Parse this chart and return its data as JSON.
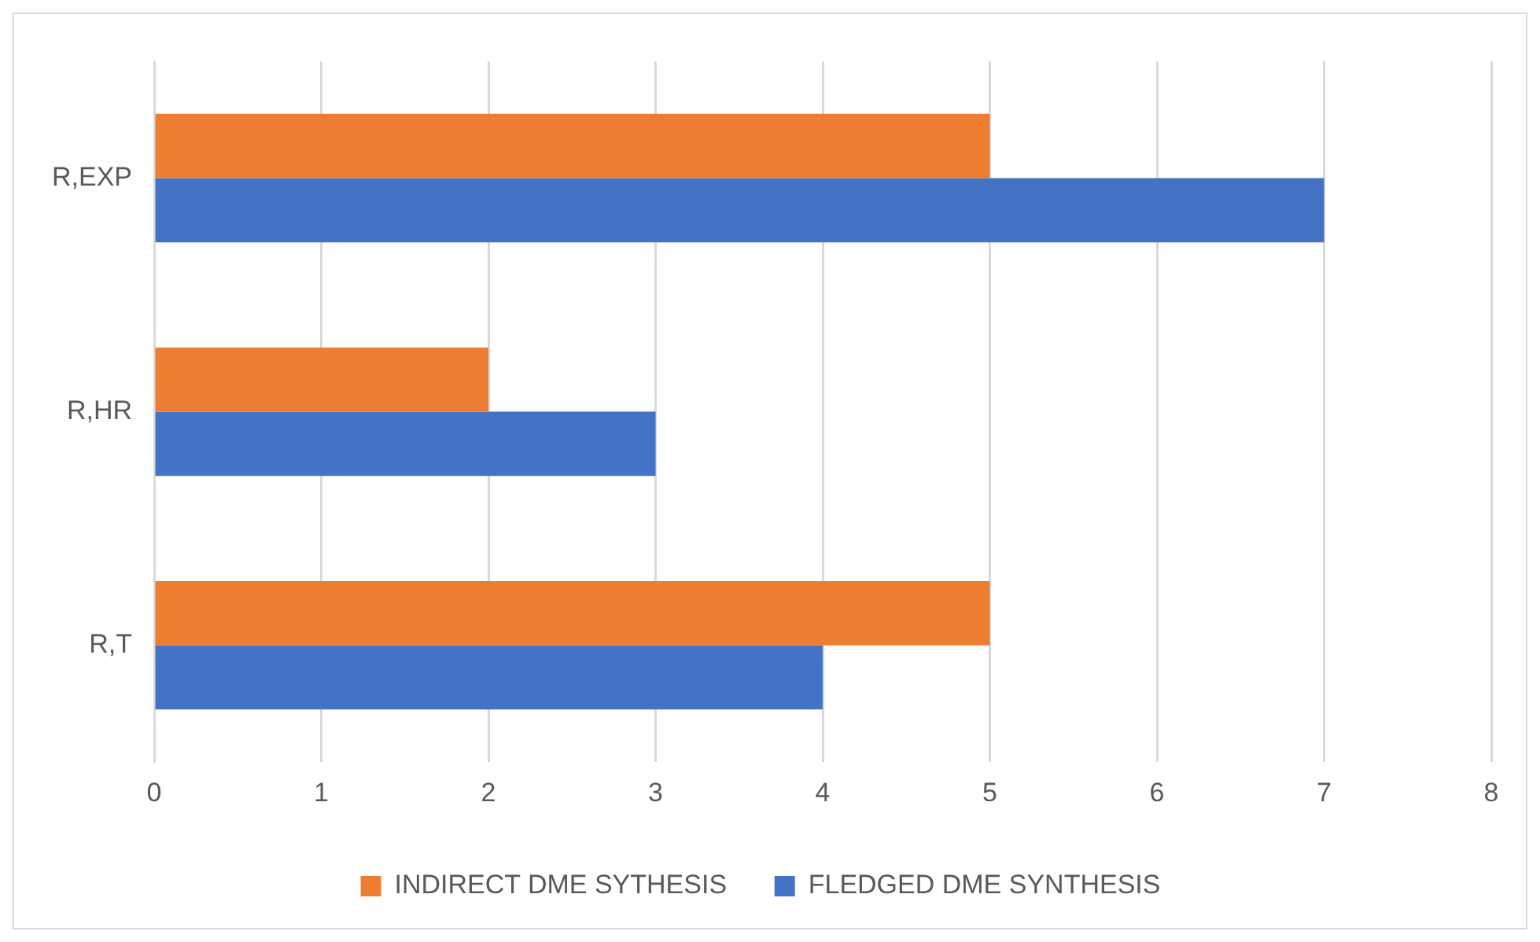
{
  "chart_data": {
    "type": "bar",
    "orientation": "horizontal",
    "categories": [
      "R,EXP",
      "R,HR",
      "R,T"
    ],
    "series": [
      {
        "name": "INDIRECT DME SYTHESIS",
        "color": "#ed7d31",
        "values": [
          5,
          2,
          5
        ]
      },
      {
        "name": "FLEDGED DME SYNTHESIS",
        "color": "#4472c4",
        "values": [
          7,
          3,
          4
        ]
      }
    ],
    "xlim": [
      0,
      8
    ],
    "xticks": [
      0,
      1,
      2,
      3,
      4,
      5,
      6,
      7,
      8
    ],
    "grid": "x",
    "legend": "bottom"
  }
}
